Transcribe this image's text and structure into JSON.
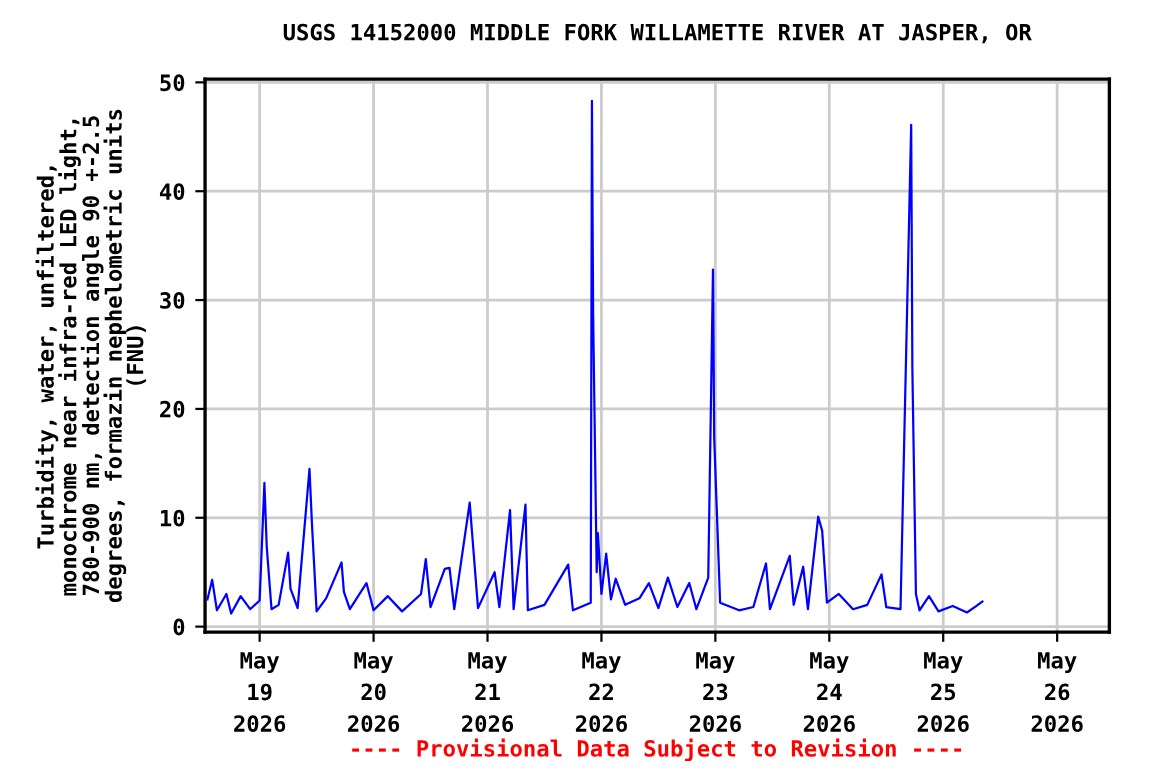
{
  "chart_data": {
    "type": "line",
    "title": "USGS 14152000 MIDDLE FORK WILLAMETTE RIVER AT JASPER, OR",
    "ylabel": "Turbidity, water, unfiltered,\nmonochrome near infra-red LED light,\n780-900 nm, detection angle 90 +-2.5\ndegrees, formazin nephelometric units\n(FNU)",
    "annotations": [
      "---- Provisional Data Subject to Revision ----"
    ],
    "x": [
      "2026-05-18T13:00",
      "2026-05-18T14:00",
      "2026-05-18T15:00",
      "2026-05-18T17:00",
      "2026-05-18T18:00",
      "2026-05-18T20:00",
      "2026-05-18T22:00",
      "2026-05-19T00:00",
      "2026-05-19T01:00",
      "2026-05-19T01:30",
      "2026-05-19T02:30",
      "2026-05-19T04:00",
      "2026-05-19T06:00",
      "2026-05-19T06:30",
      "2026-05-19T08:00",
      "2026-05-19T10:30",
      "2026-05-19T11:00",
      "2026-05-19T12:00",
      "2026-05-19T14:00",
      "2026-05-19T17:15",
      "2026-05-19T17:45",
      "2026-05-19T19:00",
      "2026-05-19T22:30",
      "2026-05-20T00:00",
      "2026-05-20T03:00",
      "2026-05-20T06:00",
      "2026-05-20T10:00",
      "2026-05-20T11:00",
      "2026-05-20T12:00",
      "2026-05-20T15:00",
      "2026-05-20T16:00",
      "2026-05-20T17:00",
      "2026-05-20T20:15",
      "2026-05-20T20:45",
      "2026-05-20T22:00",
      "2026-05-21T01:30",
      "2026-05-21T02:30",
      "2026-05-21T04:45",
      "2026-05-21T05:30",
      "2026-05-21T08:00",
      "2026-05-21T08:30",
      "2026-05-21T12:00",
      "2026-05-21T17:00",
      "2026-05-21T18:00",
      "2026-05-21T21:45",
      "2026-05-21T22:00",
      "2026-05-21T22:15",
      "2026-05-21T23:00",
      "2026-05-21T23:15",
      "2026-05-22T00:00",
      "2026-05-22T01:00",
      "2026-05-22T02:00",
      "2026-05-22T03:00",
      "2026-05-22T05:00",
      "2026-05-22T08:00",
      "2026-05-22T10:00",
      "2026-05-22T12:00",
      "2026-05-22T14:00",
      "2026-05-22T16:00",
      "2026-05-22T18:30",
      "2026-05-22T20:00",
      "2026-05-22T22:30",
      "2026-05-22T23:30",
      "2026-05-22T23:45",
      "2026-05-23T01:00",
      "2026-05-23T05:00",
      "2026-05-23T08:00",
      "2026-05-23T10:40",
      "2026-05-23T11:30",
      "2026-05-23T15:40",
      "2026-05-23T16:30",
      "2026-05-23T18:30",
      "2026-05-23T19:30",
      "2026-05-23T21:40",
      "2026-05-23T22:30",
      "2026-05-23T23:30",
      "2026-05-24T02:00",
      "2026-05-24T05:00",
      "2026-05-24T08:00",
      "2026-05-24T11:00",
      "2026-05-24T12:00",
      "2026-05-24T15:00",
      "2026-05-24T17:15",
      "2026-05-24T17:30",
      "2026-05-24T18:15",
      "2026-05-24T19:00",
      "2026-05-24T21:00",
      "2026-05-24T23:00",
      "2026-05-25T02:00",
      "2026-05-25T05:00",
      "2026-05-25T07:00",
      "2026-05-25T08:15"
    ],
    "series": [
      {
        "color": "#0000ff",
        "values": [
          2.5,
          4.3,
          1.5,
          3.0,
          1.2,
          2.8,
          1.6,
          2.4,
          13.2,
          7.3,
          1.6,
          2.0,
          6.8,
          3.5,
          1.7,
          14.5,
          9.6,
          1.4,
          2.6,
          5.9,
          3.2,
          1.6,
          4.0,
          1.5,
          2.8,
          1.4,
          3.0,
          6.2,
          1.8,
          5.3,
          5.4,
          1.6,
          11.4,
          8.6,
          1.7,
          5.0,
          1.8,
          10.7,
          1.6,
          11.2,
          1.5,
          2.0,
          5.7,
          1.5,
          2.2,
          48.3,
          28.8,
          5.0,
          8.6,
          3.0,
          6.7,
          2.5,
          4.4,
          2.0,
          2.6,
          4.0,
          1.7,
          4.5,
          1.8,
          4.0,
          1.6,
          4.5,
          32.8,
          17.4,
          2.2,
          1.5,
          1.8,
          5.8,
          1.6,
          6.5,
          2.0,
          5.5,
          1.6,
          10.1,
          8.8,
          2.2,
          3.0,
          1.6,
          2.0,
          4.8,
          1.8,
          1.6,
          46.1,
          23.7,
          3.0,
          1.5,
          2.8,
          1.4,
          1.9,
          1.3,
          1.9,
          2.3
        ]
      }
    ],
    "xlim": [
      "2026-05-18T12:30",
      "2026-05-26T11:00"
    ],
    "xticks": [
      {
        "value": "2026-05-19",
        "label": "May\n19\n2026"
      },
      {
        "value": "2026-05-20",
        "label": "May\n20\n2026"
      },
      {
        "value": "2026-05-21",
        "label": "May\n21\n2026"
      },
      {
        "value": "2026-05-22",
        "label": "May\n22\n2026"
      },
      {
        "value": "2026-05-23",
        "label": "May\n23\n2026"
      },
      {
        "value": "2026-05-24",
        "label": "May\n24\n2026"
      },
      {
        "value": "2026-05-25",
        "label": "May\n25\n2026"
      },
      {
        "value": "2026-05-26",
        "label": "May\n26\n2026"
      }
    ],
    "ylim": [
      -0.5,
      50.3
    ],
    "yticks": [
      0,
      10,
      20,
      30,
      40,
      50
    ],
    "grid": true,
    "line_style": "solid",
    "marker": "none"
  }
}
